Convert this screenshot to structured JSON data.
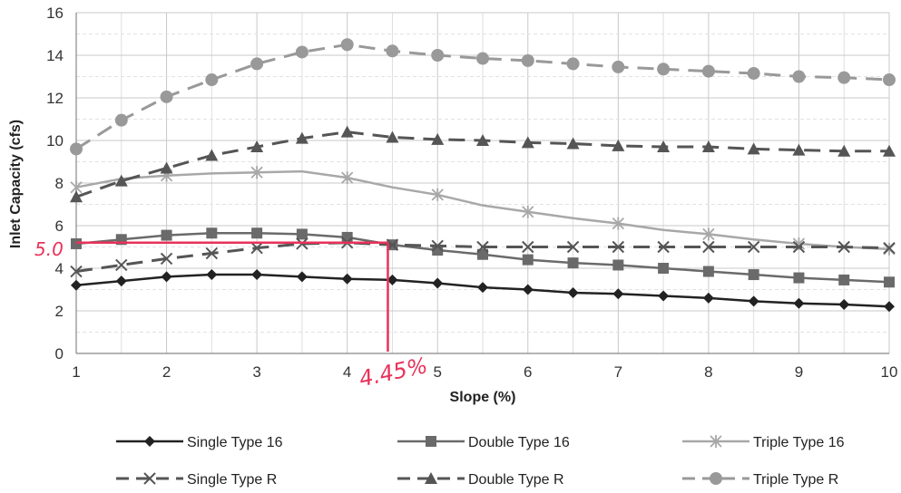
{
  "chart_data": {
    "type": "line",
    "title": "",
    "xlabel": "Slope (%)",
    "ylabel": "Inlet Capacity (cfs)",
    "xlim": [
      1,
      10
    ],
    "ylim": [
      0,
      16
    ],
    "xticks": [
      "1",
      "2",
      "3",
      "4",
      "5",
      "6",
      "7",
      "8",
      "9",
      "10"
    ],
    "yticks": [
      "0",
      "2",
      "4",
      "6",
      "8",
      "10",
      "12",
      "14",
      "16"
    ],
    "grid": true,
    "legend_position": "bottom",
    "x": [
      1,
      1.5,
      2,
      2.5,
      3,
      3.5,
      4,
      4.5,
      5,
      5.5,
      6,
      6.5,
      7,
      7.5,
      8,
      8.5,
      9,
      9.5,
      10
    ],
    "series": [
      {
        "name": "Single Type 16",
        "marker": "diamond",
        "dash": "solid",
        "color": "#222222",
        "values": [
          3.2,
          3.4,
          3.6,
          3.7,
          3.7,
          3.6,
          3.5,
          3.45,
          3.3,
          3.1,
          3.0,
          2.85,
          2.8,
          2.7,
          2.6,
          2.45,
          2.35,
          2.3,
          2.2
        ]
      },
      {
        "name": "Double Type 16",
        "marker": "square",
        "dash": "solid",
        "color": "#6a6a6a",
        "values": [
          5.15,
          5.35,
          5.55,
          5.65,
          5.65,
          5.6,
          5.45,
          5.1,
          4.85,
          4.65,
          4.4,
          4.25,
          4.15,
          4.0,
          3.85,
          3.7,
          3.55,
          3.45,
          3.35
        ]
      },
      {
        "name": "Triple Type 16",
        "marker": "star",
        "dash": "solid",
        "color": "#a8a8a8",
        "values": [
          7.8,
          8.2,
          8.35,
          8.45,
          8.5,
          8.55,
          8.25,
          7.8,
          7.45,
          6.95,
          6.65,
          6.35,
          6.1,
          5.8,
          5.6,
          5.35,
          5.15,
          5.0,
          4.9
        ]
      },
      {
        "name": "Single Type R",
        "marker": "x",
        "dash": "dashed",
        "color": "#555555",
        "values": [
          3.85,
          4.15,
          4.45,
          4.7,
          4.95,
          5.15,
          5.2,
          5.1,
          5.05,
          5.0,
          5.0,
          5.0,
          5.0,
          5.0,
          5.0,
          5.0,
          5.0,
          5.0,
          4.95
        ]
      },
      {
        "name": "Double Type R",
        "marker": "triangle",
        "dash": "dashed",
        "color": "#555555",
        "values": [
          7.35,
          8.1,
          8.7,
          9.3,
          9.7,
          10.1,
          10.4,
          10.15,
          10.05,
          10.0,
          9.9,
          9.85,
          9.75,
          9.7,
          9.7,
          9.6,
          9.55,
          9.5,
          9.5
        ]
      },
      {
        "name": "Triple Type R",
        "marker": "circle",
        "dash": "dashed",
        "color": "#999999",
        "values": [
          9.6,
          10.95,
          12.05,
          12.85,
          13.6,
          14.15,
          14.5,
          14.2,
          14.0,
          13.85,
          13.75,
          13.6,
          13.45,
          13.35,
          13.25,
          13.15,
          13.0,
          12.95,
          12.85
        ]
      }
    ],
    "annotations": [
      {
        "text": "5.0",
        "x": 1,
        "y": 5.2
      },
      {
        "text": "4.45%",
        "x": 4.45,
        "y": 0
      }
    ],
    "annotation_color": "#e8325a"
  }
}
